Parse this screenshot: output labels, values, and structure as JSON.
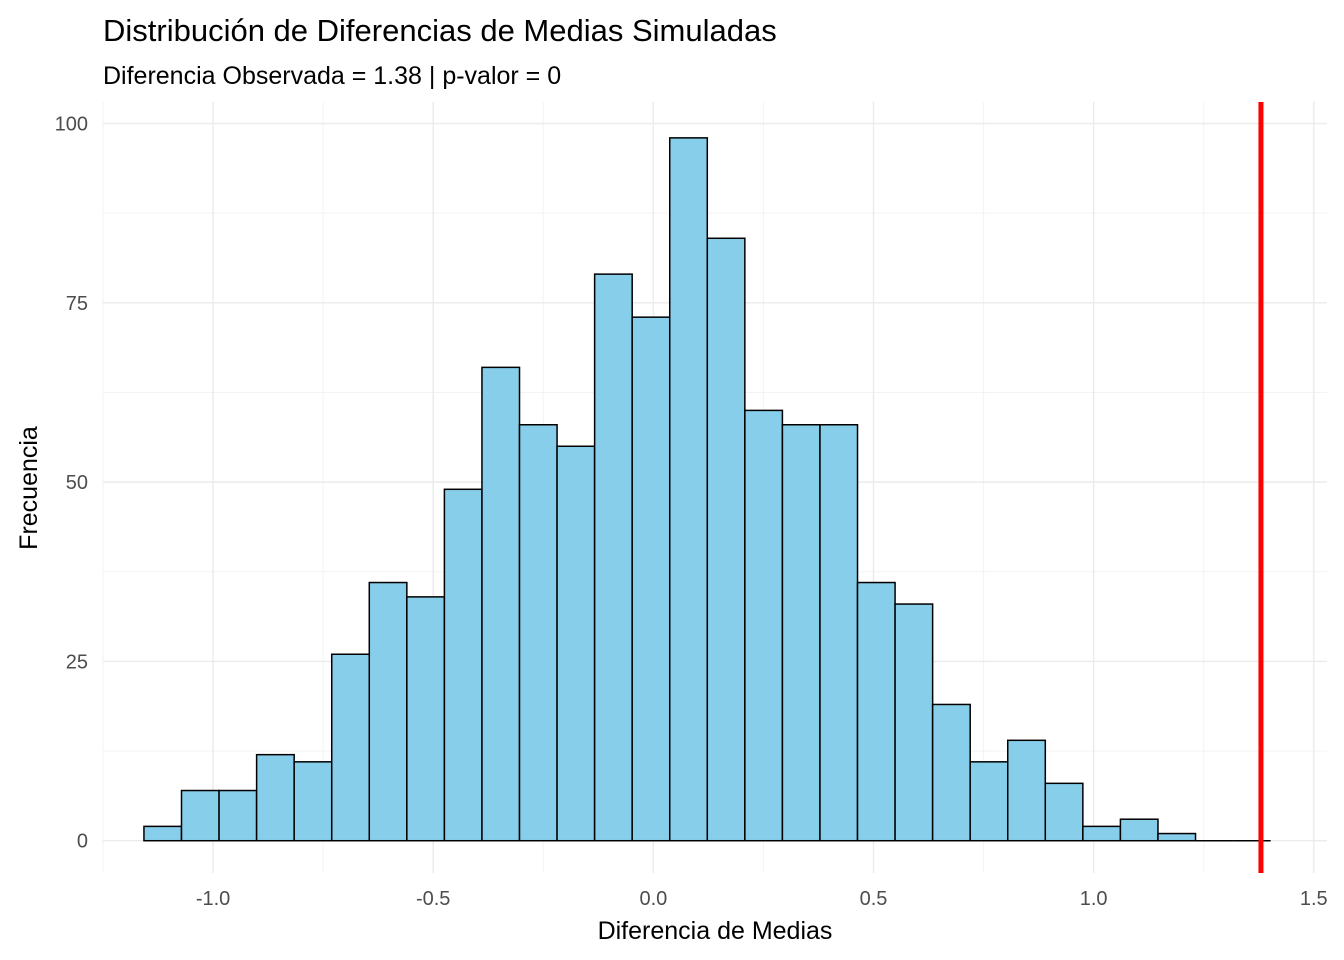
{
  "chart_data": {
    "type": "bar",
    "title": "Distribución de Diferencias de Medias Simuladas",
    "subtitle": "Diferencia Observada = 1.38 | p-valor = 0",
    "xlabel": "Diferencia de Medias",
    "ylabel": "Frecuencia",
    "xlim": [
      -1.25,
      1.53
    ],
    "ylim": [
      -4.5,
      103
    ],
    "x_ticks": [
      -1.0,
      -0.5,
      0.0,
      0.5,
      1.0,
      1.5
    ],
    "x_tick_labels": [
      "-1.0",
      "-0.5",
      "0.0",
      "0.5",
      "1.0",
      "1.5"
    ],
    "y_ticks": [
      0,
      25,
      50,
      75,
      100
    ],
    "y_tick_labels": [
      "0",
      "25",
      "50",
      "75",
      "100"
    ],
    "grid": true,
    "bin_width": 0.0853,
    "first_bin_start": -1.157,
    "values": [
      2,
      7,
      7,
      12,
      11,
      26,
      36,
      34,
      49,
      66,
      58,
      55,
      79,
      73,
      98,
      84,
      60,
      58,
      58,
      36,
      33,
      19,
      11,
      14,
      8,
      2,
      3,
      1,
      0,
      0
    ],
    "bar_fill": "#87ceeb",
    "bar_stroke": "#000000",
    "observed_line": {
      "x": 1.38,
      "color": "#ff0000"
    }
  }
}
